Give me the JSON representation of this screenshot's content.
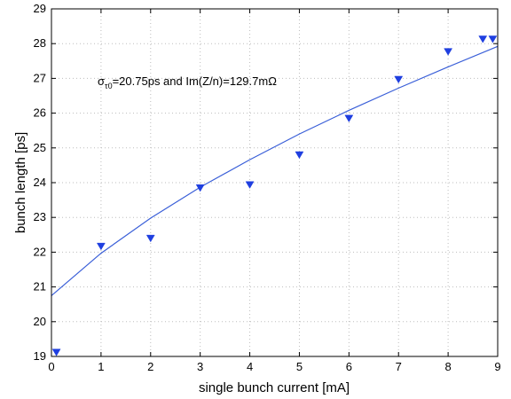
{
  "chart_data": {
    "type": "scatter",
    "xlabel": "single bunch current [mA]",
    "ylabel": "bunch length [ps]",
    "xlim": [
      0,
      9
    ],
    "ylim": [
      19,
      29
    ],
    "grid": true,
    "x_ticks": [
      "0",
      "1",
      "2",
      "3",
      "4",
      "5",
      "6",
      "7",
      "8",
      "9"
    ],
    "y_ticks": [
      "19",
      "20",
      "21",
      "22",
      "23",
      "24",
      "25",
      "26",
      "27",
      "28",
      "29"
    ],
    "annotation": {
      "sigma": "σ",
      "subscript": "τ0",
      "text": "=20.75ps and Im(Z/n)=129.7mΩ"
    },
    "series": [
      {
        "kind": "markers",
        "marker": "triangle-down",
        "color": "#1f3fe0",
        "x": [
          0.1,
          1.0,
          2.0,
          3.0,
          4.0,
          5.0,
          6.0,
          7.0,
          8.0,
          8.7,
          8.9
        ],
        "y": [
          19.12,
          22.17,
          22.4,
          23.85,
          23.94,
          24.8,
          25.85,
          26.97,
          27.77,
          28.13,
          28.13
        ]
      },
      {
        "kind": "line",
        "color": "#3a5fd8",
        "x": [
          0,
          1,
          2,
          3,
          4,
          5,
          6,
          7,
          8,
          9
        ],
        "y": [
          20.75,
          21.97,
          22.98,
          23.87,
          24.66,
          25.4,
          26.08,
          26.72,
          27.33,
          27.92
        ]
      }
    ]
  }
}
